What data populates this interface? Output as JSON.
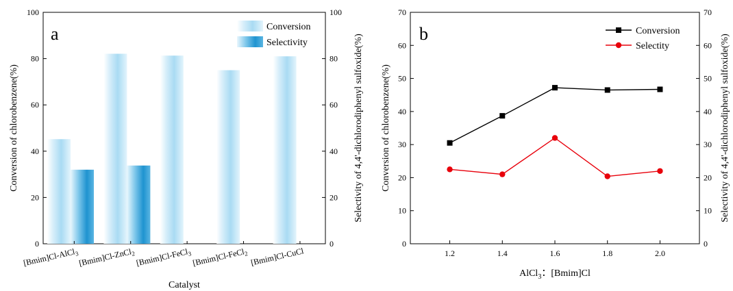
{
  "chart_data": [
    {
      "type": "bar",
      "panel_label": "a",
      "xlabel": "Catalyst",
      "ylabel": "Conversion of chlorobenzene(%)",
      "ylabel_right": "Selectivity of 4,4'-dichlorodiphenyl sulfoxide(%)",
      "categories": [
        {
          "base": "[Bmim]Cl-AlCl",
          "sub": "3"
        },
        {
          "base": "[Bmim]Cl-ZnCl",
          "sub": "2"
        },
        {
          "base": "[Bmim]Cl-FeCl",
          "sub": "3"
        },
        {
          "base": "[Bmim]Cl-FeCl",
          "sub": "2"
        },
        {
          "base": "[Bmim]Cl-CuCl",
          "sub": ""
        }
      ],
      "series": [
        {
          "name": "Conversion",
          "values": [
            45.2,
            82.1,
            81.3,
            75.0,
            81.0
          ],
          "color": "#bfe3f5"
        },
        {
          "name": "Selectivity",
          "values": [
            32.0,
            33.8,
            null,
            null,
            null
          ],
          "color": "#3aa6d8"
        }
      ],
      "ylim": [
        0,
        100
      ],
      "yticks": [
        0,
        20,
        40,
        60,
        80,
        100
      ],
      "legend_position": "top-right"
    },
    {
      "type": "line",
      "panel_label": "b",
      "xlabel": "AlCl3 : [Bmim]Cl",
      "xlabel_parts": {
        "pre": "AlCl",
        "sub": "3",
        "post": "：[Bmim]Cl"
      },
      "ylabel": "Conversion of chlorobenzene(%)",
      "ylabel_right": "Selectivity of 4,4'-dichlorodiphenyl sulfoxide(%)",
      "x": [
        1.2,
        1.4,
        1.6,
        1.8,
        2.0
      ],
      "xtick_labels": [
        "1.2",
        "1.4",
        "1.6",
        "1.8",
        "2.0"
      ],
      "series": [
        {
          "name": "Conversion",
          "values": [
            30.5,
            38.7,
            47.2,
            46.5,
            46.7
          ],
          "color": "#000000",
          "marker": "square"
        },
        {
          "name": "Selectity",
          "values": [
            22.5,
            21.0,
            32.0,
            20.4,
            22.0
          ],
          "color": "#e8000b",
          "marker": "circle"
        }
      ],
      "xlim": [
        1.05,
        2.15
      ],
      "ylim": [
        0,
        70
      ],
      "yticks": [
        0,
        10,
        20,
        30,
        40,
        50,
        60,
        70
      ],
      "legend_position": "top-right"
    }
  ]
}
